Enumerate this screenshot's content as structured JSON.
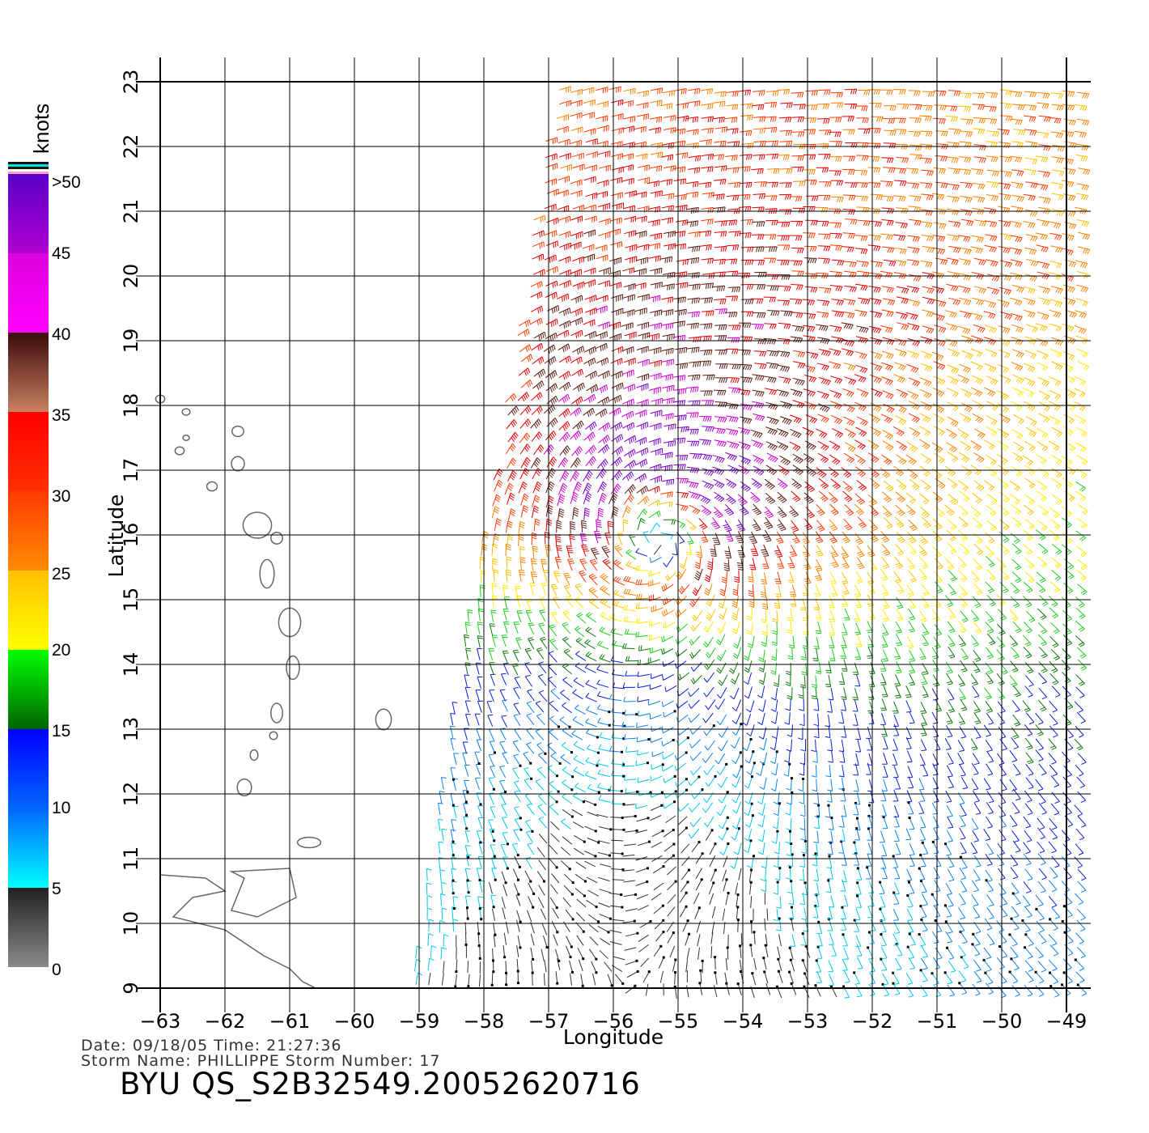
{
  "legend": {
    "unit_label": "knots",
    "ticks": [
      ">50",
      "45",
      "40",
      "35",
      "30",
      "25",
      "20",
      "15",
      "10",
      "5",
      "0"
    ],
    "bands": [
      {
        "lo": 0,
        "hi": 5,
        "colors": [
          "#8a8a8a",
          "#222222"
        ]
      },
      {
        "lo": 5,
        "hi": 10,
        "colors": [
          "#00ffff",
          "#0066ff"
        ]
      },
      {
        "lo": 10,
        "hi": 15,
        "colors": [
          "#0066ff",
          "#0000ff"
        ]
      },
      {
        "lo": 15,
        "hi": 20,
        "colors": [
          "#006400",
          "#00ff00"
        ]
      },
      {
        "lo": 20,
        "hi": 25,
        "colors": [
          "#ffff00",
          "#ffc000"
        ]
      },
      {
        "lo": 25,
        "hi": 30,
        "colors": [
          "#ff8c00",
          "#ff3a00"
        ]
      },
      {
        "lo": 30,
        "hi": 35,
        "colors": [
          "#ff3000",
          "#ff0000"
        ]
      },
      {
        "lo": 35,
        "hi": 40,
        "colors": [
          "#c88060",
          "#3a0a0a"
        ]
      },
      {
        "lo": 40,
        "hi": 45,
        "colors": [
          "#ff00ff",
          "#dd00dd"
        ]
      },
      {
        "lo": 45,
        "hi": 50,
        "colors": [
          "#b000d0",
          "#5a00c8"
        ]
      }
    ]
  },
  "map": {
    "lon_range": [
      -63,
      -48.5
    ],
    "lat_range": [
      9,
      23
    ],
    "lon_ticks": [
      "-63",
      "-62",
      "-61",
      "-60",
      "-59",
      "-58",
      "-57",
      "-56",
      "-55",
      "-54",
      "-53",
      "-52",
      "-51",
      "-50",
      "-49"
    ],
    "lat_ticks": [
      "9",
      "10",
      "11",
      "12",
      "13",
      "14",
      "15",
      "16",
      "17",
      "18",
      "19",
      "20",
      "21",
      "22",
      "23"
    ],
    "x_label": "Longitude",
    "y_label": "Latitude",
    "storm_center": {
      "lon": -55.3,
      "lat": 16.2
    }
  },
  "footer": {
    "date_line": "Date:  09/18/05   Time:  21:27:36",
    "storm_line": "Storm  Name:  PHILLIPPE   Storm  Number:  17",
    "product_id": "BYU  QS_S2B32549.20052620716"
  }
}
